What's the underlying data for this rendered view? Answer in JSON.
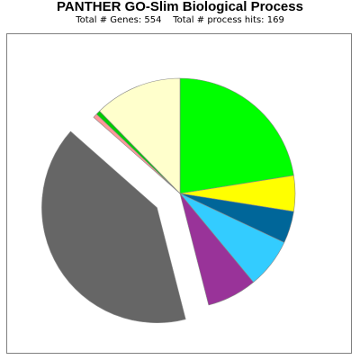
{
  "chart_data": {
    "type": "pie",
    "title": "PANTHER GO-Slim Biological Process",
    "subtitle": "Total # Genes: 554    Total # process hits: 169",
    "exploded_slice": "Dark gray",
    "slices": [
      {
        "value": 22.5,
        "color": "#00ff00",
        "explode": false
      },
      {
        "value": 5.0,
        "color": "#ffff00",
        "explode": false
      },
      {
        "value": 4.5,
        "color": "#006699",
        "explode": false
      },
      {
        "value": 7.0,
        "color": "#33ccff",
        "explode": false
      },
      {
        "value": 7.0,
        "color": "#993399",
        "explode": false
      },
      {
        "value": 40.5,
        "color": "#666666",
        "explode": true
      },
      {
        "value": 0.6,
        "color": "#ff9999",
        "explode": false
      },
      {
        "value": 0.6,
        "color": "#00cc00",
        "explode": false
      },
      {
        "value": 12.3,
        "color": "#ffffcc",
        "explode": false
      }
    ]
  }
}
